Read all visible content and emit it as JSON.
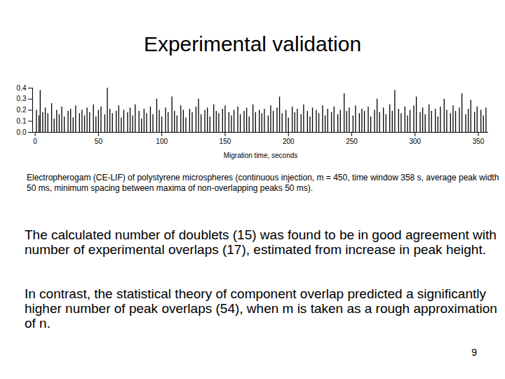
{
  "slide": {
    "title": "Experimental validation",
    "caption": "Electropherogam (CE-LIF) of polystyrene microspheres (continuous injection, m = 450, time window 358 s, average peak width 50 ms, minimum spacing between maxima of non-overlapping peaks 50 ms).",
    "paragraphs": [
      "The calculated number of doublets (15) was found to be in good agreement with number of experimental overlaps (17), estimated from increase in peak height.",
      "In contrast, the statistical theory of component overlap predicted a significantly higher number of peak overlaps (54), when m is taken as a rough approximation of n."
    ],
    "page_number": 9
  },
  "chart_data": {
    "type": "spikes",
    "xlabel": "Migration time, seconds",
    "color": "#000000",
    "xlim": [
      -2,
      358
    ],
    "ylim": [
      0,
      0.4
    ],
    "xticks": [
      0,
      50,
      100,
      150,
      200,
      250,
      300,
      350
    ],
    "yticks": [
      {
        "value": 0,
        "label": "0.0"
      },
      0.1,
      0.2,
      0.3,
      0.4
    ],
    "x": [
      1,
      3,
      4,
      6,
      8,
      10,
      13,
      15,
      17,
      19,
      21,
      23,
      26,
      28,
      30,
      32,
      35,
      37,
      39,
      41,
      43,
      46,
      48,
      50,
      52,
      55,
      57,
      59,
      61,
      64,
      66,
      68,
      70,
      73,
      75,
      77,
      79,
      82,
      84,
      86,
      88,
      91,
      93,
      96,
      98,
      100,
      103,
      105,
      108,
      110,
      112,
      115,
      117,
      119,
      122,
      124,
      127,
      129,
      131,
      134,
      136,
      138,
      141,
      143,
      145,
      148,
      150,
      153,
      155,
      157,
      160,
      162,
      165,
      167,
      169,
      172,
      174,
      177,
      179,
      181,
      184,
      186,
      188,
      191,
      193,
      195,
      198,
      200,
      203,
      205,
      207,
      210,
      212,
      215,
      217,
      219,
      222,
      224,
      227,
      229,
      231,
      234,
      236,
      239,
      241,
      244,
      246,
      248,
      251,
      253,
      256,
      258,
      260,
      263,
      265,
      268,
      270,
      272,
      275,
      277,
      280,
      282,
      284,
      287,
      289,
      292,
      294,
      296,
      299,
      301,
      304,
      306,
      308,
      311,
      313,
      316,
      318,
      320,
      323,
      325,
      328,
      330,
      332,
      335,
      337,
      340,
      342,
      344,
      347,
      349,
      352,
      354,
      356
    ],
    "values": [
      0.2,
      0.15,
      0.38,
      0.18,
      0.22,
      0.17,
      0.26,
      0.12,
      0.2,
      0.16,
      0.23,
      0.14,
      0.19,
      0.21,
      0.13,
      0.24,
      0.17,
      0.2,
      0.15,
      0.22,
      0.18,
      0.25,
      0.14,
      0.2,
      0.23,
      0.16,
      0.4,
      0.21,
      0.17,
      0.19,
      0.24,
      0.13,
      0.2,
      0.18,
      0.22,
      0.15,
      0.25,
      0.19,
      0.12,
      0.21,
      0.17,
      0.23,
      0.16,
      0.3,
      0.2,
      0.14,
      0.22,
      0.18,
      0.32,
      0.19,
      0.15,
      0.24,
      0.2,
      0.13,
      0.21,
      0.18,
      0.23,
      0.3,
      0.16,
      0.2,
      0.22,
      0.14,
      0.25,
      0.19,
      0.17,
      0.21,
      0.24,
      0.18,
      0.15,
      0.2,
      0.23,
      0.16,
      0.19,
      0.22,
      0.14,
      0.25,
      0.18,
      0.2,
      0.17,
      0.21,
      0.15,
      0.24,
      0.19,
      0.22,
      0.32,
      0.17,
      0.2,
      0.13,
      0.23,
      0.18,
      0.21,
      0.16,
      0.25,
      0.19,
      0.14,
      0.22,
      0.2,
      0.17,
      0.24,
      0.15,
      0.21,
      0.18,
      0.23,
      0.16,
      0.2,
      0.35,
      0.19,
      0.22,
      0.15,
      0.24,
      0.17,
      0.21,
      0.19,
      0.23,
      0.14,
      0.2,
      0.3,
      0.18,
      0.22,
      0.16,
      0.25,
      0.19,
      0.38,
      0.21,
      0.17,
      0.23,
      0.15,
      0.2,
      0.24,
      0.32,
      0.18,
      0.22,
      0.16,
      0.25,
      0.19,
      0.21,
      0.14,
      0.23,
      0.3,
      0.2,
      0.17,
      0.24,
      0.19,
      0.22,
      0.35,
      0.16,
      0.21,
      0.29,
      0.18,
      0.23,
      0.2,
      0.15,
      0.22
    ]
  }
}
